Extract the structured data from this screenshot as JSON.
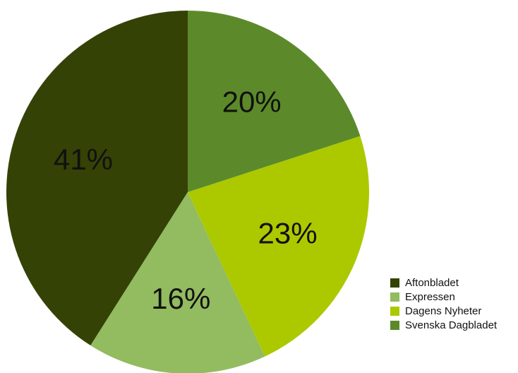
{
  "chart_data": {
    "type": "pie",
    "categories": [
      "Aftonbladet",
      "Expressen",
      "Dagens Nyheter",
      "Svenska Dagbladet"
    ],
    "values": [
      41,
      16,
      23,
      20
    ],
    "value_labels": [
      "41%",
      "16%",
      "23%",
      "20%"
    ],
    "colors": [
      "#344205",
      "#93bb5f",
      "#acc900",
      "#5c8a2a"
    ],
    "legend": "bottom-right"
  }
}
